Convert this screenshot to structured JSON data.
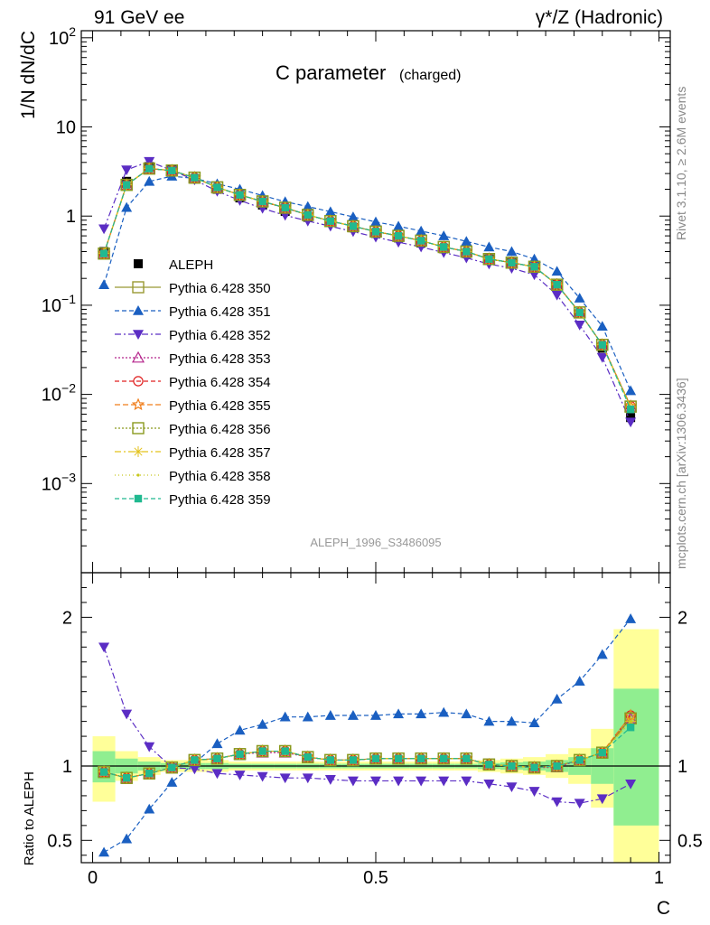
{
  "header": {
    "left": "91 GeV ee",
    "right": "γ*/Z (Hadronic)"
  },
  "side_text": {
    "rivet": "Rivet 3.1.10, ≥ 2.6M events",
    "mcplots": "mcplots.cern.ch [arXiv:1306.3436]"
  },
  "chart_data": [
    {
      "type": "line",
      "title": "C parameter",
      "subtitle": "(charged)",
      "watermark": "ALEPH_1996_S3486095",
      "ylabel": "1/N dN/dC",
      "yscale": "log",
      "ylim": [
        0.0001,
        120
      ],
      "xlim": [
        -0.02,
        1.02
      ],
      "y_ticks": [
        {
          "value": 0.001,
          "base": "10",
          "exp": "−3"
        },
        {
          "value": 0.01,
          "base": "10",
          "exp": "−2"
        },
        {
          "value": 0.1,
          "base": "10",
          "exp": "−1"
        },
        {
          "value": 1,
          "base": "1",
          "exp": ""
        },
        {
          "value": 10,
          "base": "10",
          "exp": ""
        },
        {
          "value": 100,
          "base": "10",
          "exp": "2"
        }
      ],
      "x": [
        0.02,
        0.06,
        0.1,
        0.14,
        0.18,
        0.22,
        0.26,
        0.3,
        0.34,
        0.38,
        0.42,
        0.46,
        0.5,
        0.54,
        0.58,
        0.62,
        0.66,
        0.7,
        0.74,
        0.78,
        0.82,
        0.86,
        0.9,
        0.95
      ],
      "data": {
        "name": "ALEPH",
        "values": [
          0.4,
          2.45,
          3.6,
          3.3,
          2.6,
          2.0,
          1.6,
          1.33,
          1.13,
          0.97,
          0.85,
          0.74,
          0.64,
          0.57,
          0.5,
          0.43,
          0.38,
          0.33,
          0.3,
          0.27,
          0.17,
          0.08,
          0.033,
          0.0055
        ]
      },
      "series": [
        {
          "name": "Pythia 6.428 350",
          "color": "#999933",
          "dash": "",
          "marker": "open-square",
          "values": [
            0.38,
            2.24,
            3.42,
            3.24,
            2.7,
            2.1,
            1.73,
            1.46,
            1.24,
            1.03,
            0.88,
            0.77,
            0.67,
            0.6,
            0.53,
            0.45,
            0.4,
            0.33,
            0.3,
            0.27,
            0.17,
            0.083,
            0.036,
            0.0073
          ]
        },
        {
          "name": "Pythia 6.428 351",
          "color": "#1a5fc1",
          "dash": "5,3",
          "marker": "filled-triangle-up",
          "values": [
            0.17,
            1.25,
            2.45,
            2.8,
            2.65,
            2.3,
            2.0,
            1.7,
            1.45,
            1.28,
            1.12,
            0.98,
            0.86,
            0.77,
            0.68,
            0.6,
            0.52,
            0.45,
            0.4,
            0.33,
            0.24,
            0.12,
            0.058,
            0.011
          ]
        },
        {
          "name": "Pythia 6.428 352",
          "color": "#5b2dc4",
          "dash": "7,3,2,3",
          "marker": "filled-triangle-down",
          "values": [
            0.72,
            3.3,
            4.1,
            3.25,
            2.55,
            1.9,
            1.5,
            1.22,
            1.02,
            0.88,
            0.77,
            0.67,
            0.58,
            0.51,
            0.45,
            0.39,
            0.34,
            0.29,
            0.26,
            0.22,
            0.13,
            0.06,
            0.026,
            0.0049
          ]
        },
        {
          "name": "Pythia 6.428 353",
          "color": "#b5258c",
          "dash": "2,2",
          "marker": "open-triangle-up",
          "values": [
            0.38,
            2.24,
            3.4,
            3.24,
            2.7,
            2.1,
            1.73,
            1.45,
            1.23,
            1.03,
            0.88,
            0.77,
            0.67,
            0.6,
            0.53,
            0.45,
            0.4,
            0.33,
            0.3,
            0.27,
            0.17,
            0.083,
            0.036,
            0.0073
          ]
        },
        {
          "name": "Pythia 6.428 354",
          "color": "#e02020",
          "dash": "5,3",
          "marker": "open-circle",
          "values": [
            0.38,
            2.24,
            3.41,
            3.24,
            2.7,
            2.1,
            1.73,
            1.46,
            1.24,
            1.03,
            0.88,
            0.77,
            0.67,
            0.6,
            0.53,
            0.45,
            0.4,
            0.33,
            0.3,
            0.27,
            0.17,
            0.083,
            0.036,
            0.0074
          ]
        },
        {
          "name": "Pythia 6.428 355",
          "color": "#f07d1a",
          "dash": "6,3",
          "marker": "open-star",
          "values": [
            0.38,
            2.24,
            3.41,
            3.24,
            2.7,
            2.1,
            1.73,
            1.46,
            1.24,
            1.03,
            0.88,
            0.77,
            0.67,
            0.6,
            0.53,
            0.45,
            0.4,
            0.33,
            0.3,
            0.27,
            0.17,
            0.083,
            0.036,
            0.0074
          ]
        },
        {
          "name": "Pythia 6.428 356",
          "color": "#8a9a1e",
          "dash": "2,2",
          "marker": "open-square",
          "values": [
            0.38,
            2.24,
            3.41,
            3.24,
            2.7,
            2.1,
            1.73,
            1.46,
            1.24,
            1.03,
            0.88,
            0.77,
            0.67,
            0.6,
            0.53,
            0.45,
            0.4,
            0.33,
            0.3,
            0.27,
            0.17,
            0.083,
            0.036,
            0.0073
          ]
        },
        {
          "name": "Pythia 6.428 357",
          "color": "#e3c21b",
          "dash": "7,3,2,3",
          "marker": "star",
          "values": [
            0.38,
            2.24,
            3.41,
            3.24,
            2.7,
            2.1,
            1.73,
            1.46,
            1.24,
            1.03,
            0.88,
            0.77,
            0.67,
            0.6,
            0.53,
            0.45,
            0.4,
            0.33,
            0.3,
            0.27,
            0.17,
            0.083,
            0.036,
            0.0072
          ]
        },
        {
          "name": "Pythia 6.428 358",
          "color": "#c8c81e",
          "dash": "1,3",
          "marker": "dot",
          "values": [
            0.38,
            2.24,
            3.41,
            3.24,
            2.7,
            2.1,
            1.73,
            1.46,
            1.24,
            1.03,
            0.88,
            0.77,
            0.67,
            0.6,
            0.53,
            0.45,
            0.4,
            0.33,
            0.3,
            0.27,
            0.17,
            0.083,
            0.036,
            0.0072
          ]
        },
        {
          "name": "Pythia 6.428 359",
          "color": "#20b990",
          "dash": "5,3",
          "marker": "filled-square",
          "values": [
            0.38,
            2.24,
            3.41,
            3.24,
            2.7,
            2.1,
            1.73,
            1.46,
            1.24,
            1.03,
            0.88,
            0.77,
            0.67,
            0.6,
            0.53,
            0.45,
            0.4,
            0.33,
            0.3,
            0.27,
            0.17,
            0.083,
            0.036,
            0.0068
          ]
        }
      ]
    },
    {
      "type": "line",
      "ylabel": "Ratio to ALEPH",
      "xlabel": "C",
      "ylim": [
        0.35,
        2.3
      ],
      "xlim": [
        -0.02,
        1.02
      ],
      "x_ticks": [
        {
          "value": 0,
          "label": "0"
        },
        {
          "value": 0.5,
          "label": "0.5"
        },
        {
          "value": 1,
          "label": "1"
        }
      ],
      "y_ticks": [
        {
          "value": 0.5,
          "label": "0.5"
        },
        {
          "value": 1,
          "label": "1"
        },
        {
          "value": 2,
          "label": "2"
        }
      ],
      "uncertainty_bands": {
        "x_edges": [
          0.0,
          0.04,
          0.08,
          0.12,
          0.16,
          0.2,
          0.24,
          0.28,
          0.32,
          0.36,
          0.4,
          0.44,
          0.48,
          0.52,
          0.56,
          0.6,
          0.64,
          0.68,
          0.72,
          0.76,
          0.8,
          0.84,
          0.88,
          0.92,
          1.0
        ],
        "inner_color": "#90ee90",
        "outer_color": "#ffff99",
        "inner": [
          [
            0.89,
            1.1
          ],
          [
            0.95,
            1.05
          ],
          [
            0.97,
            1.03
          ],
          [
            0.98,
            1.02
          ],
          [
            0.98,
            1.02
          ],
          [
            0.98,
            1.02
          ],
          [
            0.985,
            1.015
          ],
          [
            0.985,
            1.015
          ],
          [
            0.985,
            1.015
          ],
          [
            0.985,
            1.015
          ],
          [
            0.985,
            1.015
          ],
          [
            0.985,
            1.015
          ],
          [
            0.985,
            1.015
          ],
          [
            0.985,
            1.015
          ],
          [
            0.985,
            1.015
          ],
          [
            0.985,
            1.015
          ],
          [
            0.985,
            1.015
          ],
          [
            0.98,
            1.02
          ],
          [
            0.975,
            1.025
          ],
          [
            0.97,
            1.03
          ],
          [
            0.96,
            1.04
          ],
          [
            0.94,
            1.06
          ],
          [
            0.88,
            1.12
          ],
          [
            0.6,
            1.52
          ]
        ],
        "outer": [
          [
            0.76,
            1.2
          ],
          [
            0.9,
            1.1
          ],
          [
            0.94,
            1.06
          ],
          [
            0.96,
            1.04
          ],
          [
            0.96,
            1.04
          ],
          [
            0.96,
            1.04
          ],
          [
            0.97,
            1.03
          ],
          [
            0.97,
            1.03
          ],
          [
            0.97,
            1.03
          ],
          [
            0.97,
            1.03
          ],
          [
            0.97,
            1.03
          ],
          [
            0.97,
            1.03
          ],
          [
            0.97,
            1.03
          ],
          [
            0.97,
            1.03
          ],
          [
            0.97,
            1.03
          ],
          [
            0.97,
            1.03
          ],
          [
            0.97,
            1.03
          ],
          [
            0.96,
            1.04
          ],
          [
            0.95,
            1.05
          ],
          [
            0.94,
            1.06
          ],
          [
            0.92,
            1.08
          ],
          [
            0.88,
            1.12
          ],
          [
            0.72,
            1.25
          ],
          [
            0.3,
            1.92
          ]
        ]
      },
      "series": [
        {
          "name": "Pythia 6.428 350",
          "values": [
            0.96,
            0.92,
            0.95,
            0.99,
            1.04,
            1.05,
            1.08,
            1.1,
            1.1,
            1.06,
            1.04,
            1.04,
            1.05,
            1.05,
            1.05,
            1.05,
            1.05,
            1.01,
            1.0,
            0.99,
            1.0,
            1.04,
            1.09,
            1.32
          ]
        },
        {
          "name": "Pythia 6.428 351",
          "values": [
            0.42,
            0.51,
            0.71,
            0.89,
            1.02,
            1.15,
            1.24,
            1.28,
            1.33,
            1.33,
            1.34,
            1.34,
            1.34,
            1.35,
            1.35,
            1.36,
            1.35,
            1.3,
            1.3,
            1.29,
            1.45,
            1.57,
            1.75,
            1.99
          ]
        },
        {
          "name": "Pythia 6.428 352",
          "values": [
            1.8,
            1.35,
            1.13,
            0.99,
            0.98,
            0.95,
            0.94,
            0.93,
            0.92,
            0.92,
            0.91,
            0.9,
            0.9,
            0.9,
            0.9,
            0.9,
            0.9,
            0.88,
            0.86,
            0.83,
            0.76,
            0.75,
            0.78,
            0.88
          ]
        },
        {
          "name": "Pythia 6.428 353",
          "values": [
            0.96,
            0.92,
            0.95,
            0.99,
            1.04,
            1.05,
            1.08,
            1.09,
            1.09,
            1.06,
            1.04,
            1.04,
            1.05,
            1.05,
            1.05,
            1.05,
            1.05,
            1.01,
            1.0,
            0.99,
            0.99,
            1.04,
            1.09,
            1.32
          ]
        },
        {
          "name": "Pythia 6.428 354",
          "values": [
            0.96,
            0.92,
            0.95,
            0.99,
            1.04,
            1.05,
            1.08,
            1.1,
            1.1,
            1.06,
            1.04,
            1.04,
            1.05,
            1.05,
            1.05,
            1.05,
            1.05,
            1.01,
            1.0,
            0.99,
            1.0,
            1.04,
            1.09,
            1.34
          ]
        },
        {
          "name": "Pythia 6.428 355",
          "values": [
            0.96,
            0.92,
            0.95,
            0.99,
            1.04,
            1.05,
            1.08,
            1.1,
            1.1,
            1.06,
            1.04,
            1.04,
            1.05,
            1.05,
            1.05,
            1.05,
            1.05,
            1.01,
            1.0,
            0.99,
            1.0,
            1.04,
            1.09,
            1.34
          ]
        },
        {
          "name": "Pythia 6.428 356",
          "values": [
            0.96,
            0.92,
            0.95,
            0.99,
            1.04,
            1.05,
            1.08,
            1.1,
            1.1,
            1.06,
            1.04,
            1.04,
            1.05,
            1.05,
            1.05,
            1.05,
            1.05,
            1.01,
            1.0,
            0.99,
            1.0,
            1.04,
            1.09,
            1.32
          ]
        },
        {
          "name": "Pythia 6.428 357",
          "values": [
            0.96,
            0.92,
            0.95,
            0.99,
            1.04,
            1.05,
            1.08,
            1.1,
            1.1,
            1.06,
            1.04,
            1.04,
            1.05,
            1.05,
            1.05,
            1.05,
            1.05,
            1.01,
            1.0,
            0.99,
            1.0,
            1.04,
            1.09,
            1.3
          ]
        },
        {
          "name": "Pythia 6.428 358",
          "values": [
            0.96,
            0.92,
            0.95,
            0.99,
            1.04,
            1.05,
            1.08,
            1.1,
            1.1,
            1.06,
            1.04,
            1.04,
            1.05,
            1.05,
            1.05,
            1.05,
            1.05,
            1.01,
            1.0,
            0.99,
            1.0,
            1.04,
            1.09,
            1.3
          ]
        },
        {
          "name": "Pythia 6.428 359",
          "values": [
            0.96,
            0.92,
            0.95,
            0.99,
            1.04,
            1.05,
            1.08,
            1.1,
            1.1,
            1.06,
            1.04,
            1.04,
            1.05,
            1.05,
            1.05,
            1.05,
            1.05,
            1.01,
            1.0,
            0.99,
            1.0,
            1.04,
            1.09,
            1.26
          ]
        }
      ]
    }
  ]
}
